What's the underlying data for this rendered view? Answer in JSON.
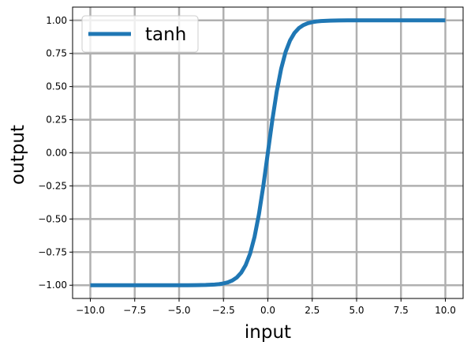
{
  "chart_data": {
    "type": "line",
    "title": "",
    "xlabel": "input",
    "ylabel": "output",
    "xlim": [
      -11.0,
      11.0
    ],
    "ylim": [
      -1.1,
      1.1
    ],
    "x_ticks": [
      -10.0,
      -7.5,
      -5.0,
      -2.5,
      0.0,
      2.5,
      5.0,
      7.5,
      10.0
    ],
    "x_tick_labels": [
      "−10.0",
      "−7.5",
      "−5.0",
      "−2.5",
      "0.0",
      "2.5",
      "5.0",
      "7.5",
      "10.0"
    ],
    "y_ticks": [
      -1.0,
      -0.75,
      -0.5,
      -0.25,
      0.0,
      0.25,
      0.5,
      0.75,
      1.0
    ],
    "y_tick_labels": [
      "−1.00",
      "−0.75",
      "−0.50",
      "−0.25",
      "0.00",
      "0.25",
      "0.50",
      "0.75",
      "1.00"
    ],
    "grid": true,
    "legend_position": "top-left",
    "series": [
      {
        "name": "tanh",
        "color": "#1f77b4",
        "x": [
          -10.0,
          -9.0,
          -8.0,
          -7.0,
          -6.0,
          -5.0,
          -4.5,
          -4.0,
          -3.5,
          -3.0,
          -2.75,
          -2.5,
          -2.25,
          -2.0,
          -1.75,
          -1.5,
          -1.25,
          -1.0,
          -0.75,
          -0.5,
          -0.25,
          0.0,
          0.25,
          0.5,
          0.75,
          1.0,
          1.25,
          1.5,
          1.75,
          2.0,
          2.25,
          2.5,
          2.75,
          3.0,
          3.5,
          4.0,
          4.5,
          5.0,
          6.0,
          7.0,
          8.0,
          9.0,
          10.0
        ],
        "y": [
          -1.0,
          -1.0,
          -1.0,
          -1.0,
          -1.0,
          -0.9999,
          -0.9998,
          -0.9993,
          -0.9982,
          -0.9951,
          -0.9918,
          -0.9866,
          -0.978,
          -0.964,
          -0.9414,
          -0.9051,
          -0.8483,
          -0.7616,
          -0.6351,
          -0.4621,
          -0.2449,
          0.0,
          0.2449,
          0.4621,
          0.6351,
          0.7616,
          0.8483,
          0.9051,
          0.9414,
          0.964,
          0.978,
          0.9866,
          0.9918,
          0.9951,
          0.9982,
          0.9993,
          0.9998,
          0.9999,
          1.0,
          1.0,
          1.0,
          1.0,
          1.0
        ]
      }
    ]
  }
}
